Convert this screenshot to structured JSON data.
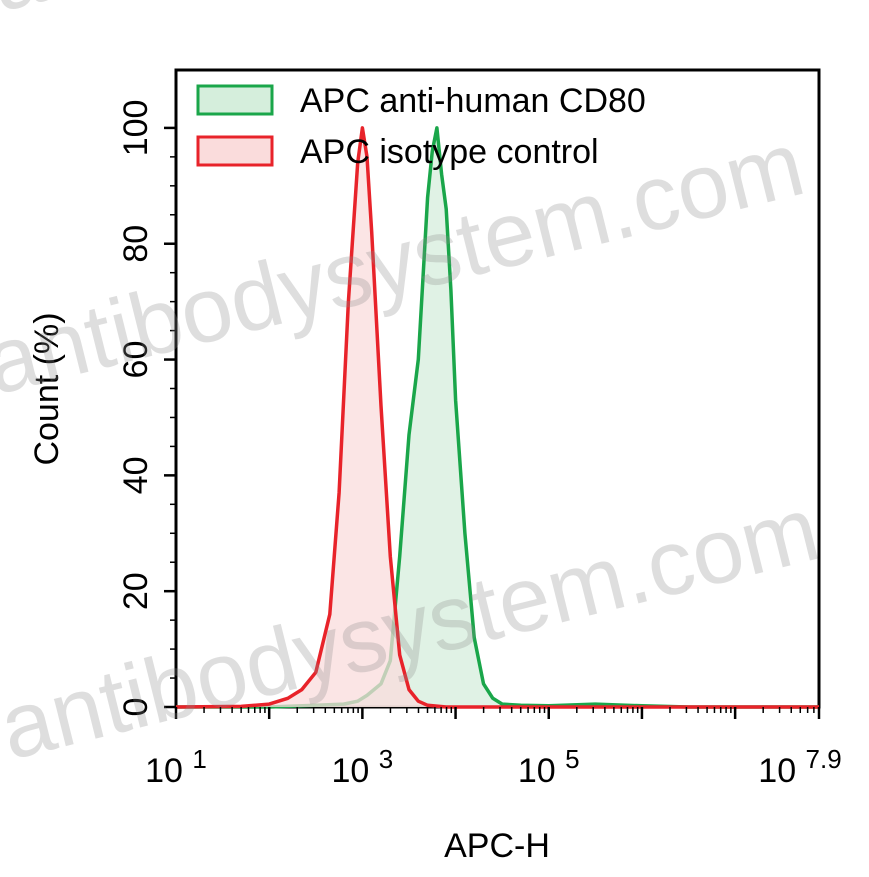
{
  "chart_data": {
    "type": "area",
    "title": "",
    "xlabel": "APC-H",
    "ylabel": "Count  (%)",
    "x_scale": "log10",
    "xlim_log10": [
      1,
      7.9
    ],
    "ylim": [
      0,
      110
    ],
    "x_ticks": [
      {
        "exp": 1,
        "base": "10",
        "sup": "1"
      },
      {
        "exp": 3,
        "base": "10",
        "sup": "3"
      },
      {
        "exp": 5,
        "base": "10",
        "sup": "5"
      },
      {
        "exp": 7.9,
        "base": "10",
        "sup": "7.9"
      }
    ],
    "y_ticks": [
      0,
      20,
      40,
      60,
      80,
      100
    ],
    "y_tick_labels": [
      "0",
      "20",
      "40",
      "60",
      "80",
      "100"
    ],
    "legend_position": "top-left",
    "series": [
      {
        "name": "APC anti-human CD80",
        "stroke": "#1aa64a",
        "fill": "#d5eedc",
        "log10_x": [
          1.0,
          2.0,
          2.5,
          2.8,
          2.95,
          3.05,
          3.2,
          3.3,
          3.4,
          3.5,
          3.6,
          3.7,
          3.75,
          3.8,
          3.85,
          3.9,
          3.95,
          4.0,
          4.1,
          4.2,
          4.3,
          4.4,
          4.5,
          4.7,
          5.0,
          5.5,
          6.0,
          6.5,
          7.9
        ],
        "values": [
          0,
          0,
          0.3,
          0.5,
          1,
          2,
          4,
          8,
          26,
          47,
          60,
          88,
          96,
          100,
          92,
          86,
          72,
          53,
          30,
          12,
          4,
          1.5,
          0.5,
          0.3,
          0.2,
          0.5,
          0.2,
          0,
          0
        ]
      },
      {
        "name": "APC isotype control",
        "stroke": "#e8232a",
        "fill": "#fadcdc",
        "log10_x": [
          1.0,
          1.7,
          2.0,
          2.2,
          2.35,
          2.5,
          2.65,
          2.75,
          2.85,
          2.95,
          3.0,
          3.05,
          3.1,
          3.2,
          3.3,
          3.4,
          3.5,
          3.6,
          3.7,
          3.9,
          4.2,
          7.9
        ],
        "values": [
          0,
          0.1,
          0.5,
          1.5,
          3,
          6,
          16,
          37,
          70,
          94,
          100,
          95,
          82,
          52,
          26,
          9,
          3,
          1,
          0.3,
          0,
          0,
          0
        ]
      }
    ]
  },
  "watermark": {
    "text": "antibodysystem.com",
    "partial_text": "an"
  }
}
